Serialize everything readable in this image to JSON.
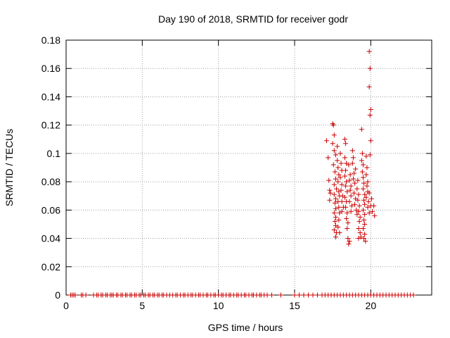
{
  "chart_data": {
    "type": "scatter",
    "title": "Day 190 of 2018, SRMTID for receiver godr",
    "xlabel": "GPS time / hours",
    "ylabel": "SRMTID / TECUs",
    "xlim": [
      0,
      24
    ],
    "ylim": [
      0,
      0.18
    ],
    "x_ticks": [
      0,
      5,
      10,
      15,
      20
    ],
    "y_ticks": [
      0,
      0.02,
      0.04,
      0.06,
      0.08,
      0.1,
      0.12,
      0.14,
      0.16,
      0.18
    ],
    "x_tick_labels": [
      "0",
      "5",
      "10",
      "15",
      "20"
    ],
    "y_tick_labels": [
      "0",
      "0.02",
      "0.04",
      "0.06",
      "0.08",
      "0.1",
      "0.12",
      "0.14",
      "0.16",
      "0.18"
    ],
    "grid": true,
    "marker": "plus",
    "series": [
      {
        "name": "SRMTID",
        "color": "#cc0000",
        "zero_points_x": [
          0.3,
          0.4,
          0.5,
          0.6,
          1.0,
          1.1,
          1.3,
          1.8,
          2.0,
          2.1,
          2.3,
          2.4,
          2.6,
          2.7,
          2.9,
          3.0,
          3.1,
          3.3,
          3.4,
          3.6,
          3.7,
          3.9,
          4.0,
          4.2,
          4.3,
          4.5,
          4.6,
          4.8,
          4.9,
          5.1,
          5.2,
          5.4,
          5.5,
          5.7,
          5.8,
          6.0,
          6.1,
          6.3,
          6.4,
          6.6,
          6.8,
          7.0,
          7.2,
          7.3,
          7.5,
          7.7,
          7.8,
          8.0,
          8.2,
          8.3,
          8.5,
          8.7,
          8.8,
          9.0,
          9.2,
          9.3,
          9.5,
          9.7,
          9.8,
          10.0,
          10.2,
          10.3,
          10.5,
          10.7,
          10.8,
          11.0,
          11.2,
          11.3,
          11.5,
          11.7,
          11.8,
          12.0,
          12.2,
          12.3,
          12.5,
          12.7,
          12.8,
          13.0,
          13.2,
          13.5,
          14.1,
          15.0,
          15.3,
          15.6,
          15.9,
          16.2,
          16.5,
          16.8,
          17.0,
          17.2,
          17.4,
          17.6,
          17.8,
          18.0,
          18.2,
          18.4,
          18.6,
          18.8,
          19.0,
          19.2,
          19.4,
          19.6,
          19.8,
          20.0,
          20.2,
          20.4,
          20.6,
          20.8,
          21.0,
          21.2,
          21.4,
          21.6,
          21.8,
          22.0,
          22.2,
          22.4,
          22.6,
          22.8
        ],
        "points": [
          [
            17.1,
            0.109
          ],
          [
            17.2,
            0.097
          ],
          [
            17.25,
            0.081
          ],
          [
            17.3,
            0.074
          ],
          [
            17.3,
            0.067
          ],
          [
            17.35,
            0.072
          ],
          [
            17.5,
            0.121
          ],
          [
            17.55,
            0.12
          ],
          [
            17.6,
            0.113
          ],
          [
            17.5,
            0.107
          ],
          [
            17.6,
            0.102
          ],
          [
            17.7,
            0.099
          ],
          [
            17.55,
            0.092
          ],
          [
            17.65,
            0.087
          ],
          [
            17.7,
            0.082
          ],
          [
            17.6,
            0.078
          ],
          [
            17.75,
            0.075
          ],
          [
            17.6,
            0.071
          ],
          [
            17.7,
            0.068
          ],
          [
            17.65,
            0.065
          ],
          [
            17.7,
            0.061
          ],
          [
            17.6,
            0.058
          ],
          [
            17.7,
            0.055
          ],
          [
            17.65,
            0.052
          ],
          [
            17.7,
            0.049
          ],
          [
            17.6,
            0.046
          ],
          [
            17.75,
            0.044
          ],
          [
            17.7,
            0.041
          ],
          [
            17.8,
            0.105
          ],
          [
            17.8,
            0.095
          ],
          [
            17.85,
            0.09
          ],
          [
            17.9,
            0.085
          ],
          [
            17.85,
            0.08
          ],
          [
            17.9,
            0.073
          ],
          [
            17.95,
            0.07
          ],
          [
            17.85,
            0.066
          ],
          [
            17.9,
            0.062
          ],
          [
            17.95,
            0.058
          ],
          [
            17.9,
            0.053
          ],
          [
            17.85,
            0.048
          ],
          [
            17.95,
            0.044
          ],
          [
            18.0,
            0.1
          ],
          [
            18.05,
            0.093
          ],
          [
            18.1,
            0.088
          ],
          [
            18.0,
            0.083
          ],
          [
            18.1,
            0.078
          ],
          [
            18.05,
            0.074
          ],
          [
            18.15,
            0.07
          ],
          [
            18.1,
            0.066
          ],
          [
            18.2,
            0.062
          ],
          [
            18.1,
            0.059
          ],
          [
            18.3,
            0.11
          ],
          [
            18.35,
            0.107
          ],
          [
            18.3,
            0.097
          ],
          [
            18.4,
            0.093
          ],
          [
            18.35,
            0.088
          ],
          [
            18.3,
            0.084
          ],
          [
            18.4,
            0.08
          ],
          [
            18.35,
            0.077
          ],
          [
            18.45,
            0.073
          ],
          [
            18.3,
            0.069
          ],
          [
            18.4,
            0.066
          ],
          [
            18.35,
            0.062
          ],
          [
            18.45,
            0.058
          ],
          [
            18.4,
            0.054
          ],
          [
            18.5,
            0.051
          ],
          [
            18.45,
            0.047
          ],
          [
            18.5,
            0.04
          ],
          [
            18.55,
            0.036
          ],
          [
            18.6,
            0.038
          ],
          [
            18.55,
            0.092
          ],
          [
            18.65,
            0.085
          ],
          [
            18.6,
            0.081
          ],
          [
            18.7,
            0.077
          ],
          [
            18.65,
            0.074
          ],
          [
            18.7,
            0.07
          ],
          [
            18.6,
            0.066
          ],
          [
            18.75,
            0.063
          ],
          [
            18.7,
            0.059
          ],
          [
            18.8,
            0.102
          ],
          [
            18.85,
            0.097
          ],
          [
            18.8,
            0.093
          ],
          [
            18.9,
            0.086
          ],
          [
            18.85,
            0.082
          ],
          [
            18.95,
            0.079
          ],
          [
            18.9,
            0.072
          ],
          [
            19.0,
            0.068
          ],
          [
            18.95,
            0.064
          ],
          [
            19.05,
            0.06
          ],
          [
            19.1,
            0.057
          ],
          [
            19.0,
            0.089
          ],
          [
            19.15,
            0.081
          ],
          [
            19.1,
            0.075
          ],
          [
            19.2,
            0.071
          ],
          [
            19.15,
            0.067
          ],
          [
            19.25,
            0.063
          ],
          [
            19.2,
            0.059
          ],
          [
            19.3,
            0.055
          ],
          [
            19.25,
            0.052
          ],
          [
            19.2,
            0.047
          ],
          [
            19.3,
            0.044
          ],
          [
            19.2,
            0.04
          ],
          [
            19.35,
            0.041
          ],
          [
            19.4,
            0.117
          ],
          [
            19.45,
            0.1
          ],
          [
            19.4,
            0.095
          ],
          [
            19.5,
            0.092
          ],
          [
            19.45,
            0.087
          ],
          [
            19.5,
            0.083
          ],
          [
            19.55,
            0.079
          ],
          [
            19.5,
            0.075
          ],
          [
            19.6,
            0.071
          ],
          [
            19.55,
            0.067
          ],
          [
            19.6,
            0.064
          ],
          [
            19.5,
            0.06
          ],
          [
            19.6,
            0.057
          ],
          [
            19.55,
            0.053
          ],
          [
            19.6,
            0.05
          ],
          [
            19.5,
            0.047
          ],
          [
            19.6,
            0.043
          ],
          [
            19.55,
            0.04
          ],
          [
            19.65,
            0.038
          ],
          [
            19.7,
            0.098
          ],
          [
            19.75,
            0.09
          ],
          [
            19.7,
            0.085
          ],
          [
            19.8,
            0.08
          ],
          [
            19.75,
            0.077
          ],
          [
            19.8,
            0.073
          ],
          [
            19.7,
            0.069
          ],
          [
            19.85,
            0.066
          ],
          [
            19.8,
            0.062
          ],
          [
            19.9,
            0.058
          ],
          [
            19.9,
            0.172
          ],
          [
            19.95,
            0.16
          ],
          [
            19.9,
            0.147
          ],
          [
            20.0,
            0.131
          ],
          [
            19.95,
            0.127
          ],
          [
            20.0,
            0.109
          ],
          [
            19.95,
            0.099
          ],
          [
            19.9,
            0.072
          ],
          [
            20.05,
            0.068
          ],
          [
            20.0,
            0.063
          ],
          [
            20.1,
            0.059
          ],
          [
            20.2,
            0.063
          ],
          [
            20.25,
            0.056
          ]
        ]
      }
    ]
  }
}
